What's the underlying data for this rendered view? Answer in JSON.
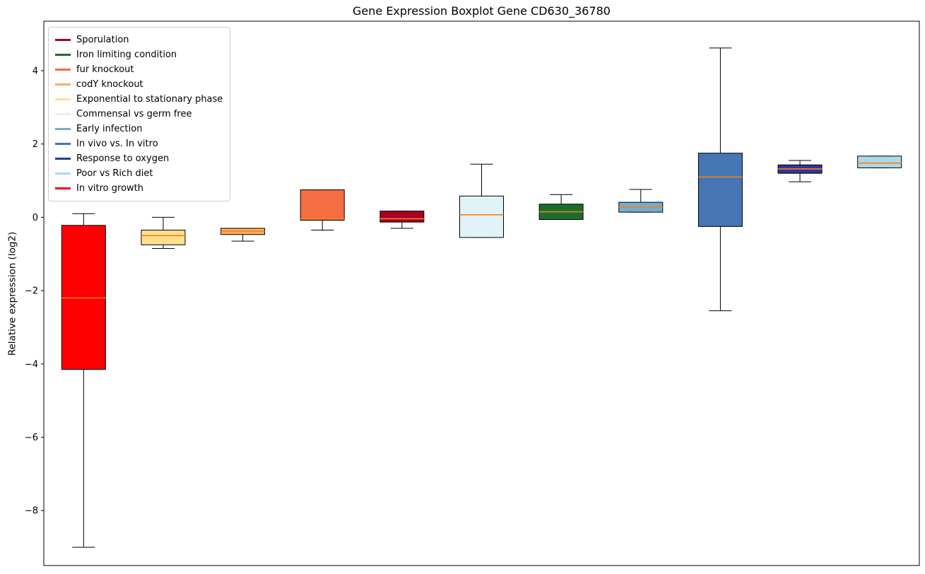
{
  "chart_data": {
    "type": "boxplot",
    "title": "Gene Expression Boxplot Gene CD630_36780",
    "ylabel": "Relative expression (log2)",
    "ylim": [
      -9.5,
      5.35
    ],
    "yticks": [
      4,
      2,
      0,
      -2,
      -4,
      -6,
      -8
    ],
    "grid": false,
    "legend_position": "upper left",
    "median_color": "#ff7f0e",
    "series": [
      {
        "name": "In vitro growth",
        "color": "#ff0000",
        "whisker_low": -9.0,
        "q1": -4.15,
        "median": -2.2,
        "q3": -0.22,
        "whisker_high": 0.1
      },
      {
        "name": "Exponential to stationary phase",
        "color": "#fee090",
        "whisker_low": -0.85,
        "q1": -0.75,
        "median": -0.5,
        "q3": -0.35,
        "whisker_high": 0.0
      },
      {
        "name": "codY knockout",
        "color": "#fdae61",
        "whisker_low": -0.65,
        "q1": -0.47,
        "median": -0.38,
        "q3": -0.3,
        "whisker_high": -0.3
      },
      {
        "name": "fur knockout",
        "color": "#f46d43",
        "whisker_low": -0.35,
        "q1": -0.08,
        "median": -0.03,
        "q3": 0.75,
        "whisker_high": 0.75
      },
      {
        "name": "Sporulation",
        "color": "#a50026",
        "whisker_low": -0.3,
        "q1": -0.13,
        "median": -0.04,
        "q3": 0.17,
        "whisker_high": 0.17
      },
      {
        "name": "Commensal vs germ free",
        "color": "#e0f3f8",
        "whisker_low": -0.55,
        "q1": -0.55,
        "median": 0.07,
        "q3": 0.58,
        "whisker_high": 1.45
      },
      {
        "name": "Iron limiting condition",
        "color": "#1b6e2f",
        "whisker_low": -0.06,
        "q1": -0.06,
        "median": 0.15,
        "q3": 0.36,
        "whisker_high": 0.62
      },
      {
        "name": "Early infection",
        "color": "#74add1",
        "whisker_low": 0.14,
        "q1": 0.14,
        "median": 0.28,
        "q3": 0.41,
        "whisker_high": 0.76
      },
      {
        "name": "In vivo vs. In vitro",
        "color": "#4575b4",
        "whisker_low": -2.55,
        "q1": -0.25,
        "median": 1.1,
        "q3": 1.75,
        "whisker_high": 4.62
      },
      {
        "name": "Response to oxygen",
        "color": "#313695",
        "whisker_low": 0.97,
        "q1": 1.2,
        "median": 1.32,
        "q3": 1.43,
        "whisker_high": 1.55
      },
      {
        "name": "Poor vs Rich diet",
        "color": "#abd9e9",
        "whisker_low": 1.35,
        "q1": 1.35,
        "median": 1.48,
        "q3": 1.67,
        "whisker_high": 1.67
      }
    ],
    "legend": [
      {
        "label": "Sporulation",
        "color": "#a50026"
      },
      {
        "label": "Iron limiting condition",
        "color": "#1b6e2f"
      },
      {
        "label": "fur knockout",
        "color": "#f46d43"
      },
      {
        "label": "codY knockout",
        "color": "#fdae61"
      },
      {
        "label": "Exponential to stationary phase",
        "color": "#fee090"
      },
      {
        "label": "Commensal vs germ free",
        "color": "#e0f3f8"
      },
      {
        "label": "Early infection",
        "color": "#74add1"
      },
      {
        "label": "In vivo vs. In vitro",
        "color": "#4575b4"
      },
      {
        "label": "Response to oxygen",
        "color": "#313695"
      },
      {
        "label": "Poor vs Rich diet",
        "color": "#abd9e9"
      },
      {
        "label": "In vitro growth",
        "color": "#ff0000"
      }
    ]
  }
}
